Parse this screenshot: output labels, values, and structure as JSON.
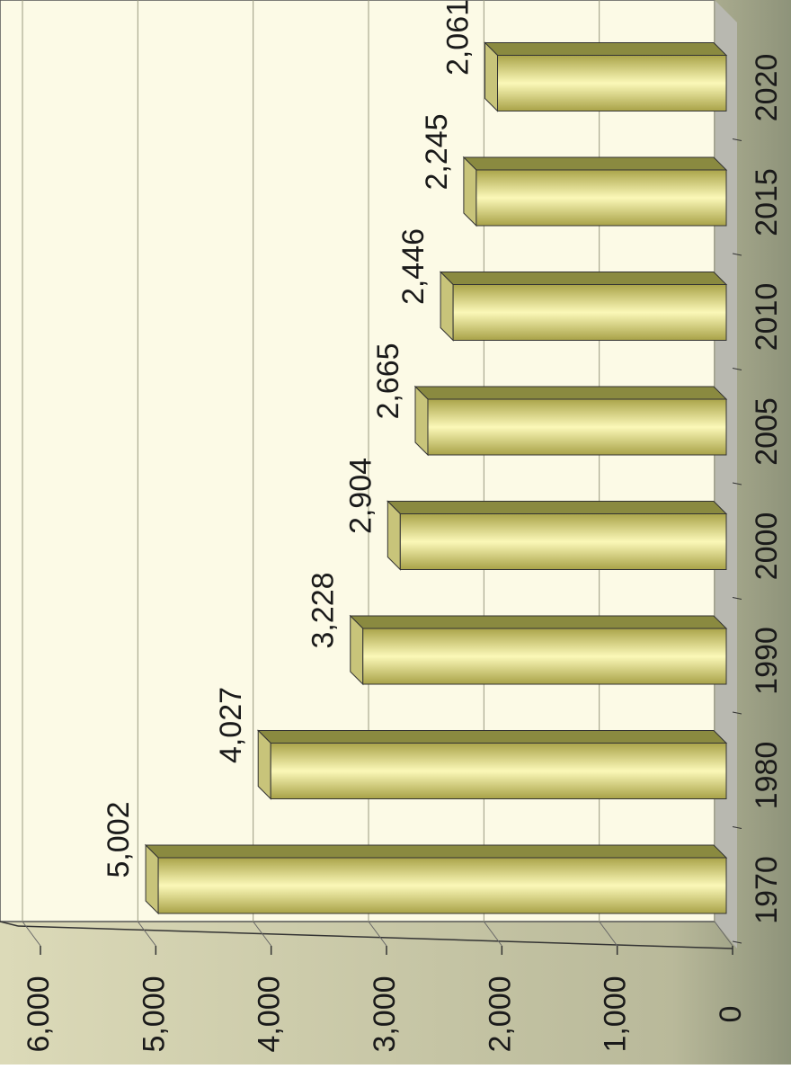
{
  "chart_data": {
    "type": "bar",
    "categories": [
      "1970",
      "1980",
      "1990",
      "2000",
      "2005",
      "2010",
      "2015",
      "2020"
    ],
    "values": [
      5002,
      4027,
      3228,
      2904,
      2665,
      2446,
      2245,
      2061
    ],
    "value_labels": [
      "5,002",
      "4,027",
      "3,228",
      "2,904",
      "2,665",
      "2,446",
      "2,245",
      "2,061"
    ],
    "color": "#d8d47a",
    "ylim": [
      0,
      6000
    ],
    "yticks": [
      0,
      {
        "value": 1000,
        "label": "1,000"
      },
      {
        "value": 2000,
        "label": "2,000"
      },
      {
        "value": 3000,
        "label": "3,000"
      },
      {
        "value": 4000,
        "label": "4,000"
      },
      {
        "value": 5000,
        "label": "5,000"
      },
      {
        "value": 6000,
        "label": "6,000"
      }
    ],
    "grid": true
  }
}
